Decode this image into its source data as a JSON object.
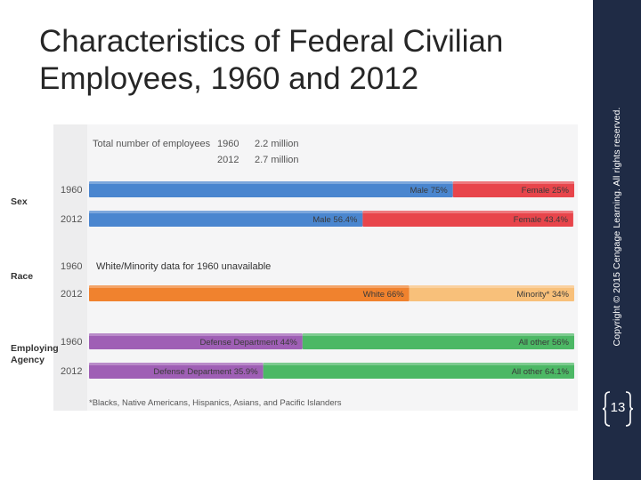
{
  "slide": {
    "title": "Characteristics of Federal Civilian Employees, 1960 and 2012",
    "copyright": "Copyright © 2015 Cengage Learning. All rights reserved.",
    "page_number": "13"
  },
  "chart_data": {
    "type": "bar",
    "subtype": "stacked-100-horizontal",
    "totals_label": "Total number of employees",
    "totals": [
      {
        "year": "1960",
        "value": "2.2 million"
      },
      {
        "year": "2012",
        "value": "2.7 million"
      }
    ],
    "xlim": [
      0,
      100
    ],
    "groups": [
      {
        "label_lines": [
          "Sex"
        ],
        "rows": [
          {
            "year": "1960",
            "segments": [
              {
                "label": "Male 75%",
                "value": 75,
                "color": "#4a86cf"
              },
              {
                "label": "Female 25%",
                "value": 25,
                "color": "#e8454b"
              }
            ]
          },
          {
            "year": "2012",
            "segments": [
              {
                "label": "Male 56.4%",
                "value": 56.4,
                "color": "#4a86cf"
              },
              {
                "label": "Female 43.4%",
                "value": 43.4,
                "color": "#e8454b"
              }
            ]
          }
        ]
      },
      {
        "label_lines": [
          "Race"
        ],
        "rows": [
          {
            "year": "1960",
            "note": "White/Minority data for 1960 unavailable",
            "segments": []
          },
          {
            "year": "2012",
            "segments": [
              {
                "label": "White 66%",
                "value": 66,
                "color": "#f0822e"
              },
              {
                "label": "Minority* 34%",
                "value": 34,
                "color": "#f8c07a"
              }
            ]
          }
        ]
      },
      {
        "label_lines": [
          "Employing",
          "Agency"
        ],
        "rows": [
          {
            "year": "1960",
            "segments": [
              {
                "label": "Defense Department 44%",
                "value": 44,
                "color": "#9f5fb5"
              },
              {
                "label": "All other 56%",
                "value": 56,
                "color": "#4cb865"
              }
            ]
          },
          {
            "year": "2012",
            "segments": [
              {
                "label": "Defense Department 35.9%",
                "value": 35.9,
                "color": "#9f5fb5"
              },
              {
                "label": "All other 64.1%",
                "value": 64.1,
                "color": "#4cb865"
              }
            ]
          }
        ]
      }
    ],
    "footnote": "*Blacks, Native Americans, Hispanics, Asians, and Pacific Islanders"
  }
}
